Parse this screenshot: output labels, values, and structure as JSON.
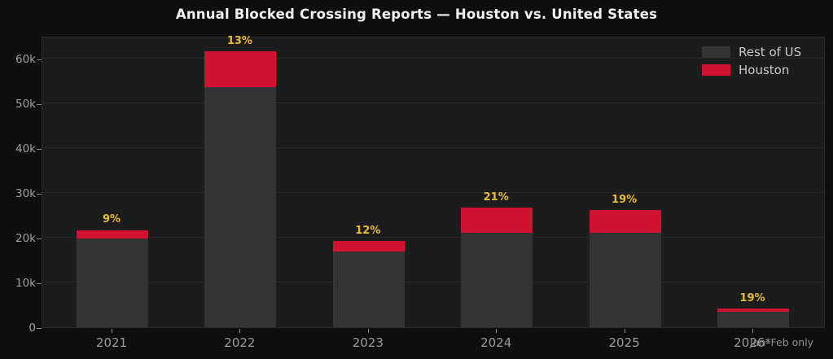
{
  "title": "Annual Blocked Crossing Reports — Houston vs. United States",
  "footnote": "Jan–Feb only",
  "colors": {
    "figure_background": "#0e0e0e",
    "plot_background": "#1c1c1c",
    "rest_of_us": "#333333",
    "houston": "#d01232",
    "pct_label": "#eabc2b",
    "tick_text": "#9a9a9a",
    "legend_text": "#c9c9c9"
  },
  "legend": [
    {
      "label": "Rest of US",
      "color": "#333333"
    },
    {
      "label": "Houston",
      "color": "#d01232"
    }
  ],
  "y_axis": {
    "tick_labels": [
      "0",
      "10k",
      "20k",
      "30k",
      "40k",
      "50k",
      "60k"
    ],
    "tick_values": [
      0,
      10000,
      20000,
      30000,
      40000,
      50000,
      60000
    ],
    "max": 65000
  },
  "chart_data": {
    "type": "bar",
    "stacked": true,
    "title": "Annual Blocked Crossing Reports — Houston vs. United States",
    "categories": [
      "2021",
      "2022",
      "2023",
      "2024",
      "2025",
      "2026*"
    ],
    "series": [
      {
        "name": "Rest of US",
        "values": [
          19750,
          53600,
          16950,
          21050,
          21150,
          3400
        ]
      },
      {
        "name": "Houston",
        "values": [
          1950,
          8000,
          2350,
          5600,
          5000,
          800
        ]
      }
    ],
    "totals": [
      21700,
      61600,
      19300,
      26650,
      26150,
      4200
    ],
    "pct_labels": [
      "9%",
      "13%",
      "12%",
      "21%",
      "19%",
      "19%"
    ],
    "xlabel": "",
    "ylabel": "",
    "ylim": [
      0,
      65000
    ],
    "grid": "horizontal",
    "legend_position": "upper right",
    "annotation": "2026 bar covers Jan–Feb only"
  }
}
